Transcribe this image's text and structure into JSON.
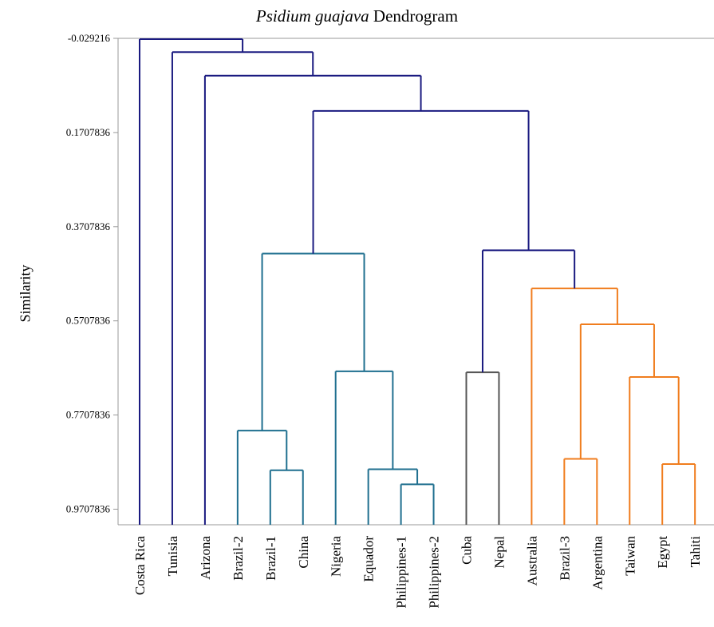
{
  "chart_data": {
    "type": "dendrogram",
    "title": {
      "italic": "Psidium guajava",
      "rest": " Dendrogram"
    },
    "ylabel": "Similarity",
    "yticks": [
      "-0.029216",
      "0.1707836",
      "0.3707836",
      "0.5707836",
      "0.7707836",
      "0.9707836"
    ],
    "ytick_values": [
      -0.029216,
      0.1707836,
      0.3707836,
      0.5707836,
      0.7707836,
      0.9707836
    ],
    "ylim": [
      -0.029216,
      1.0
    ],
    "leaves": [
      "Costa Rica",
      "Tunisia",
      "Arizona",
      "Brazil-2",
      "Brazil-1",
      "China",
      "Nigeria",
      "Equador",
      "Philippines-1",
      "Philippines-2",
      "Cuba",
      "Nepal",
      "Australia",
      "Brazil-3",
      "Argentina",
      "Taiwan",
      "Egypt",
      "Tahiti"
    ],
    "colors": {
      "navy": "#1a1a80",
      "teal": "#1f6f8f",
      "orange": "#f07d1e",
      "gray": "#555555"
    },
    "merges": [
      {
        "a": "Brazil-1",
        "b": "China",
        "height": 0.888,
        "color": "teal"
      },
      {
        "a": "Philippines-1",
        "b": "Philippines-2",
        "height": 0.918,
        "color": "teal"
      },
      {
        "a": "Egypt",
        "b": "Tahiti",
        "height": 0.875,
        "color": "orange"
      },
      {
        "a": "Equador",
        "b": "Philippines-1+2",
        "height": 0.886,
        "color": "teal"
      },
      {
        "a": "Brazil-3",
        "b": "Argentina",
        "height": 0.864,
        "color": "orange"
      },
      {
        "a": "Brazil-2",
        "b": "Brazil-1+China",
        "height": 0.804,
        "color": "teal"
      },
      {
        "a": "Taiwan",
        "b": "Egypt+Tahiti",
        "height": 0.69,
        "color": "orange"
      },
      {
        "a": "Cuba",
        "b": "Nepal",
        "height": 0.68,
        "color": "gray"
      },
      {
        "a": "Nigeria",
        "b": "Equador+Philippines",
        "height": 0.678,
        "color": "teal"
      },
      {
        "a": "Brazil-3+Argentina",
        "b": "Taiwan+Egypt+Tahiti",
        "height": 0.578,
        "color": "orange"
      },
      {
        "a": "Australia",
        "b": "Brazil-3..Tahiti",
        "height": 0.502,
        "color": "orange"
      },
      {
        "a": "Brazil-2..China",
        "b": "Nigeria..Philippines-2",
        "height": 0.428,
        "color": "teal"
      },
      {
        "a": "Cuba+Nepal",
        "b": "Australia..Tahiti",
        "height": 0.421,
        "color": "navy"
      },
      {
        "a": "Brazil-2..Philippines-2",
        "b": "Cuba..Tahiti",
        "height": 0.125,
        "color": "navy"
      },
      {
        "a": "Arizona",
        "b": "Brazil-2..Tahiti",
        "height": 0.05,
        "color": "navy"
      },
      {
        "a": "Tunisia",
        "b": "Arizona..Tahiti",
        "height": 0.0,
        "color": "navy"
      },
      {
        "a": "Costa Rica",
        "b": "Tunisia..Tahiti",
        "height": -0.029,
        "color": "navy"
      }
    ]
  }
}
